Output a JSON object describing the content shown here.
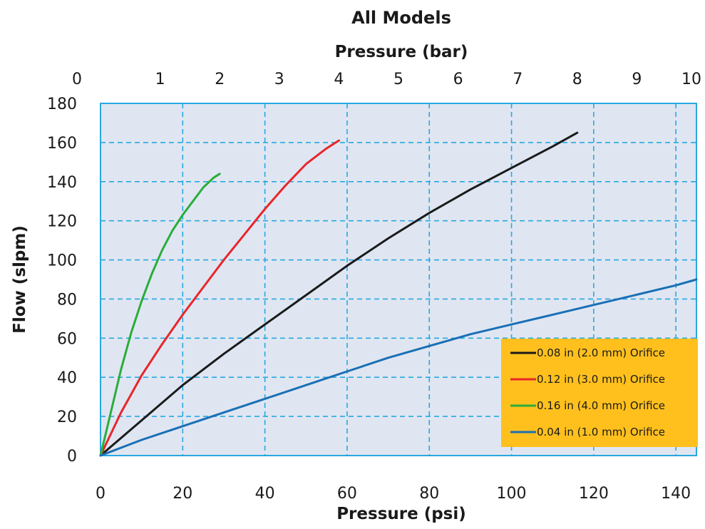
{
  "chart_data": {
    "type": "line",
    "title": "All Models",
    "xlabel": "Pressure (psi)",
    "x2label": "Pressure (bar)",
    "ylabel": "Flow (slpm)",
    "xlim": [
      0,
      145
    ],
    "ylim": [
      0,
      180
    ],
    "x_ticks": [
      0,
      20,
      40,
      60,
      80,
      100,
      120,
      140
    ],
    "x_tick_labels": [
      "0",
      "20",
      "40",
      "60",
      "80",
      "100",
      "120",
      "140"
    ],
    "x2_ticks": [
      0,
      1,
      2,
      3,
      4,
      5,
      6,
      7,
      8,
      9,
      10
    ],
    "x2_tick_labels": [
      "0",
      "1",
      "2",
      "3",
      "4",
      "5",
      "6",
      "7",
      "8",
      "9",
      "10"
    ],
    "y_ticks": [
      0,
      20,
      40,
      60,
      80,
      100,
      120,
      140,
      160,
      180
    ],
    "y_tick_labels": [
      "0",
      "20",
      "40",
      "60",
      "80",
      "100",
      "120",
      "140",
      "160",
      "180"
    ],
    "grid": true,
    "legend_position": "bottom-right",
    "series": [
      {
        "name": "0.08 in (2.0 mm) Orifice",
        "color": "#1a1a1a",
        "x": [
          0,
          10,
          20,
          30,
          40,
          50,
          60,
          70,
          80,
          90,
          100,
          110,
          116
        ],
        "y": [
          0,
          18,
          36,
          52,
          67,
          82,
          97,
          111,
          124,
          136,
          147,
          158,
          165
        ]
      },
      {
        "name": "0.12 in (3.0 mm) Orifice",
        "color": "#e8262b",
        "x": [
          0,
          5,
          10,
          15,
          20,
          25,
          30,
          35,
          40,
          45,
          50,
          55,
          58
        ],
        "y": [
          0,
          22,
          41,
          57,
          72,
          86,
          100,
          113,
          126,
          138,
          149,
          157,
          161
        ]
      },
      {
        "name": "0.16 in (4.0 mm) Orifice",
        "color": "#2aad3a",
        "x": [
          0,
          2.5,
          5,
          7.5,
          10,
          12.5,
          15,
          17.5,
          20,
          22.5,
          25,
          27.5,
          29
        ],
        "y": [
          0,
          22,
          44,
          63,
          79,
          93,
          105,
          115,
          123,
          130,
          137,
          142,
          144
        ]
      },
      {
        "name": "0.04 in (1.0 mm) Orifice",
        "color": "#1a6fb5",
        "x": [
          0,
          10,
          20,
          30,
          40,
          50,
          60,
          70,
          80,
          90,
          100,
          110,
          120,
          130,
          140,
          145
        ],
        "y": [
          0,
          8,
          15,
          22,
          29,
          36,
          43,
          50,
          56,
          62,
          67,
          72,
          77,
          82,
          87,
          90
        ]
      }
    ]
  }
}
